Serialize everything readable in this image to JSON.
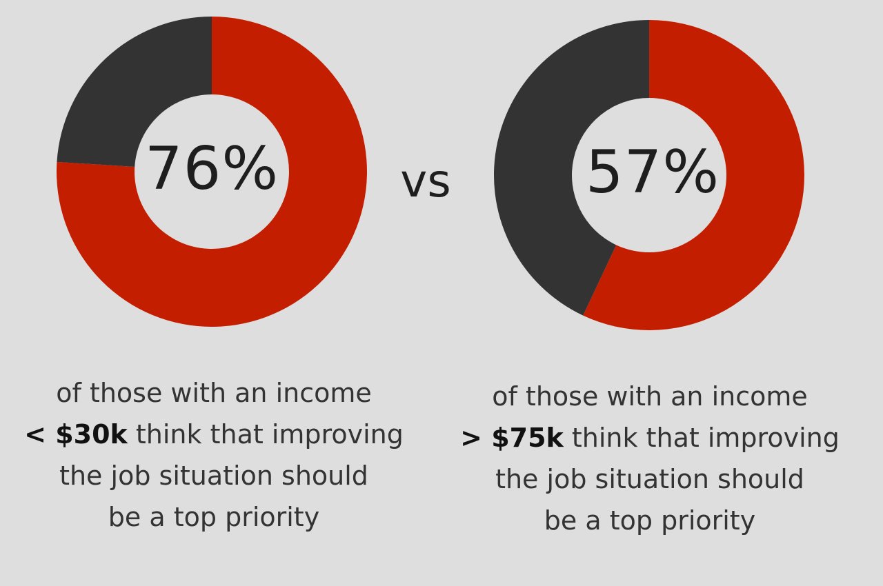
{
  "chart_data": [
    {
      "type": "pie",
      "series": [
        {
          "values": [
            76,
            24
          ]
        }
      ],
      "colors": {
        "highlight": "#c41e00",
        "rest": "#333333"
      },
      "center_label": "76%"
    },
    {
      "type": "pie",
      "series": [
        {
          "values": [
            57,
            43
          ]
        }
      ],
      "colors": {
        "highlight": "#c41e00",
        "rest": "#333333"
      },
      "center_label": "57%"
    }
  ],
  "vs_label": "vs",
  "captions": [
    {
      "line1": "of those with an income",
      "emphasis": "< $30k",
      "line2_rest": " think that improving",
      "line3": "the job situation should",
      "line4": "be a top priority"
    },
    {
      "line1": "of those with an income",
      "emphasis": "> $75k",
      "line2_rest": " think that improving",
      "line3": "the job situation should",
      "line4": "be a top priority"
    }
  ],
  "background": "#dedede"
}
